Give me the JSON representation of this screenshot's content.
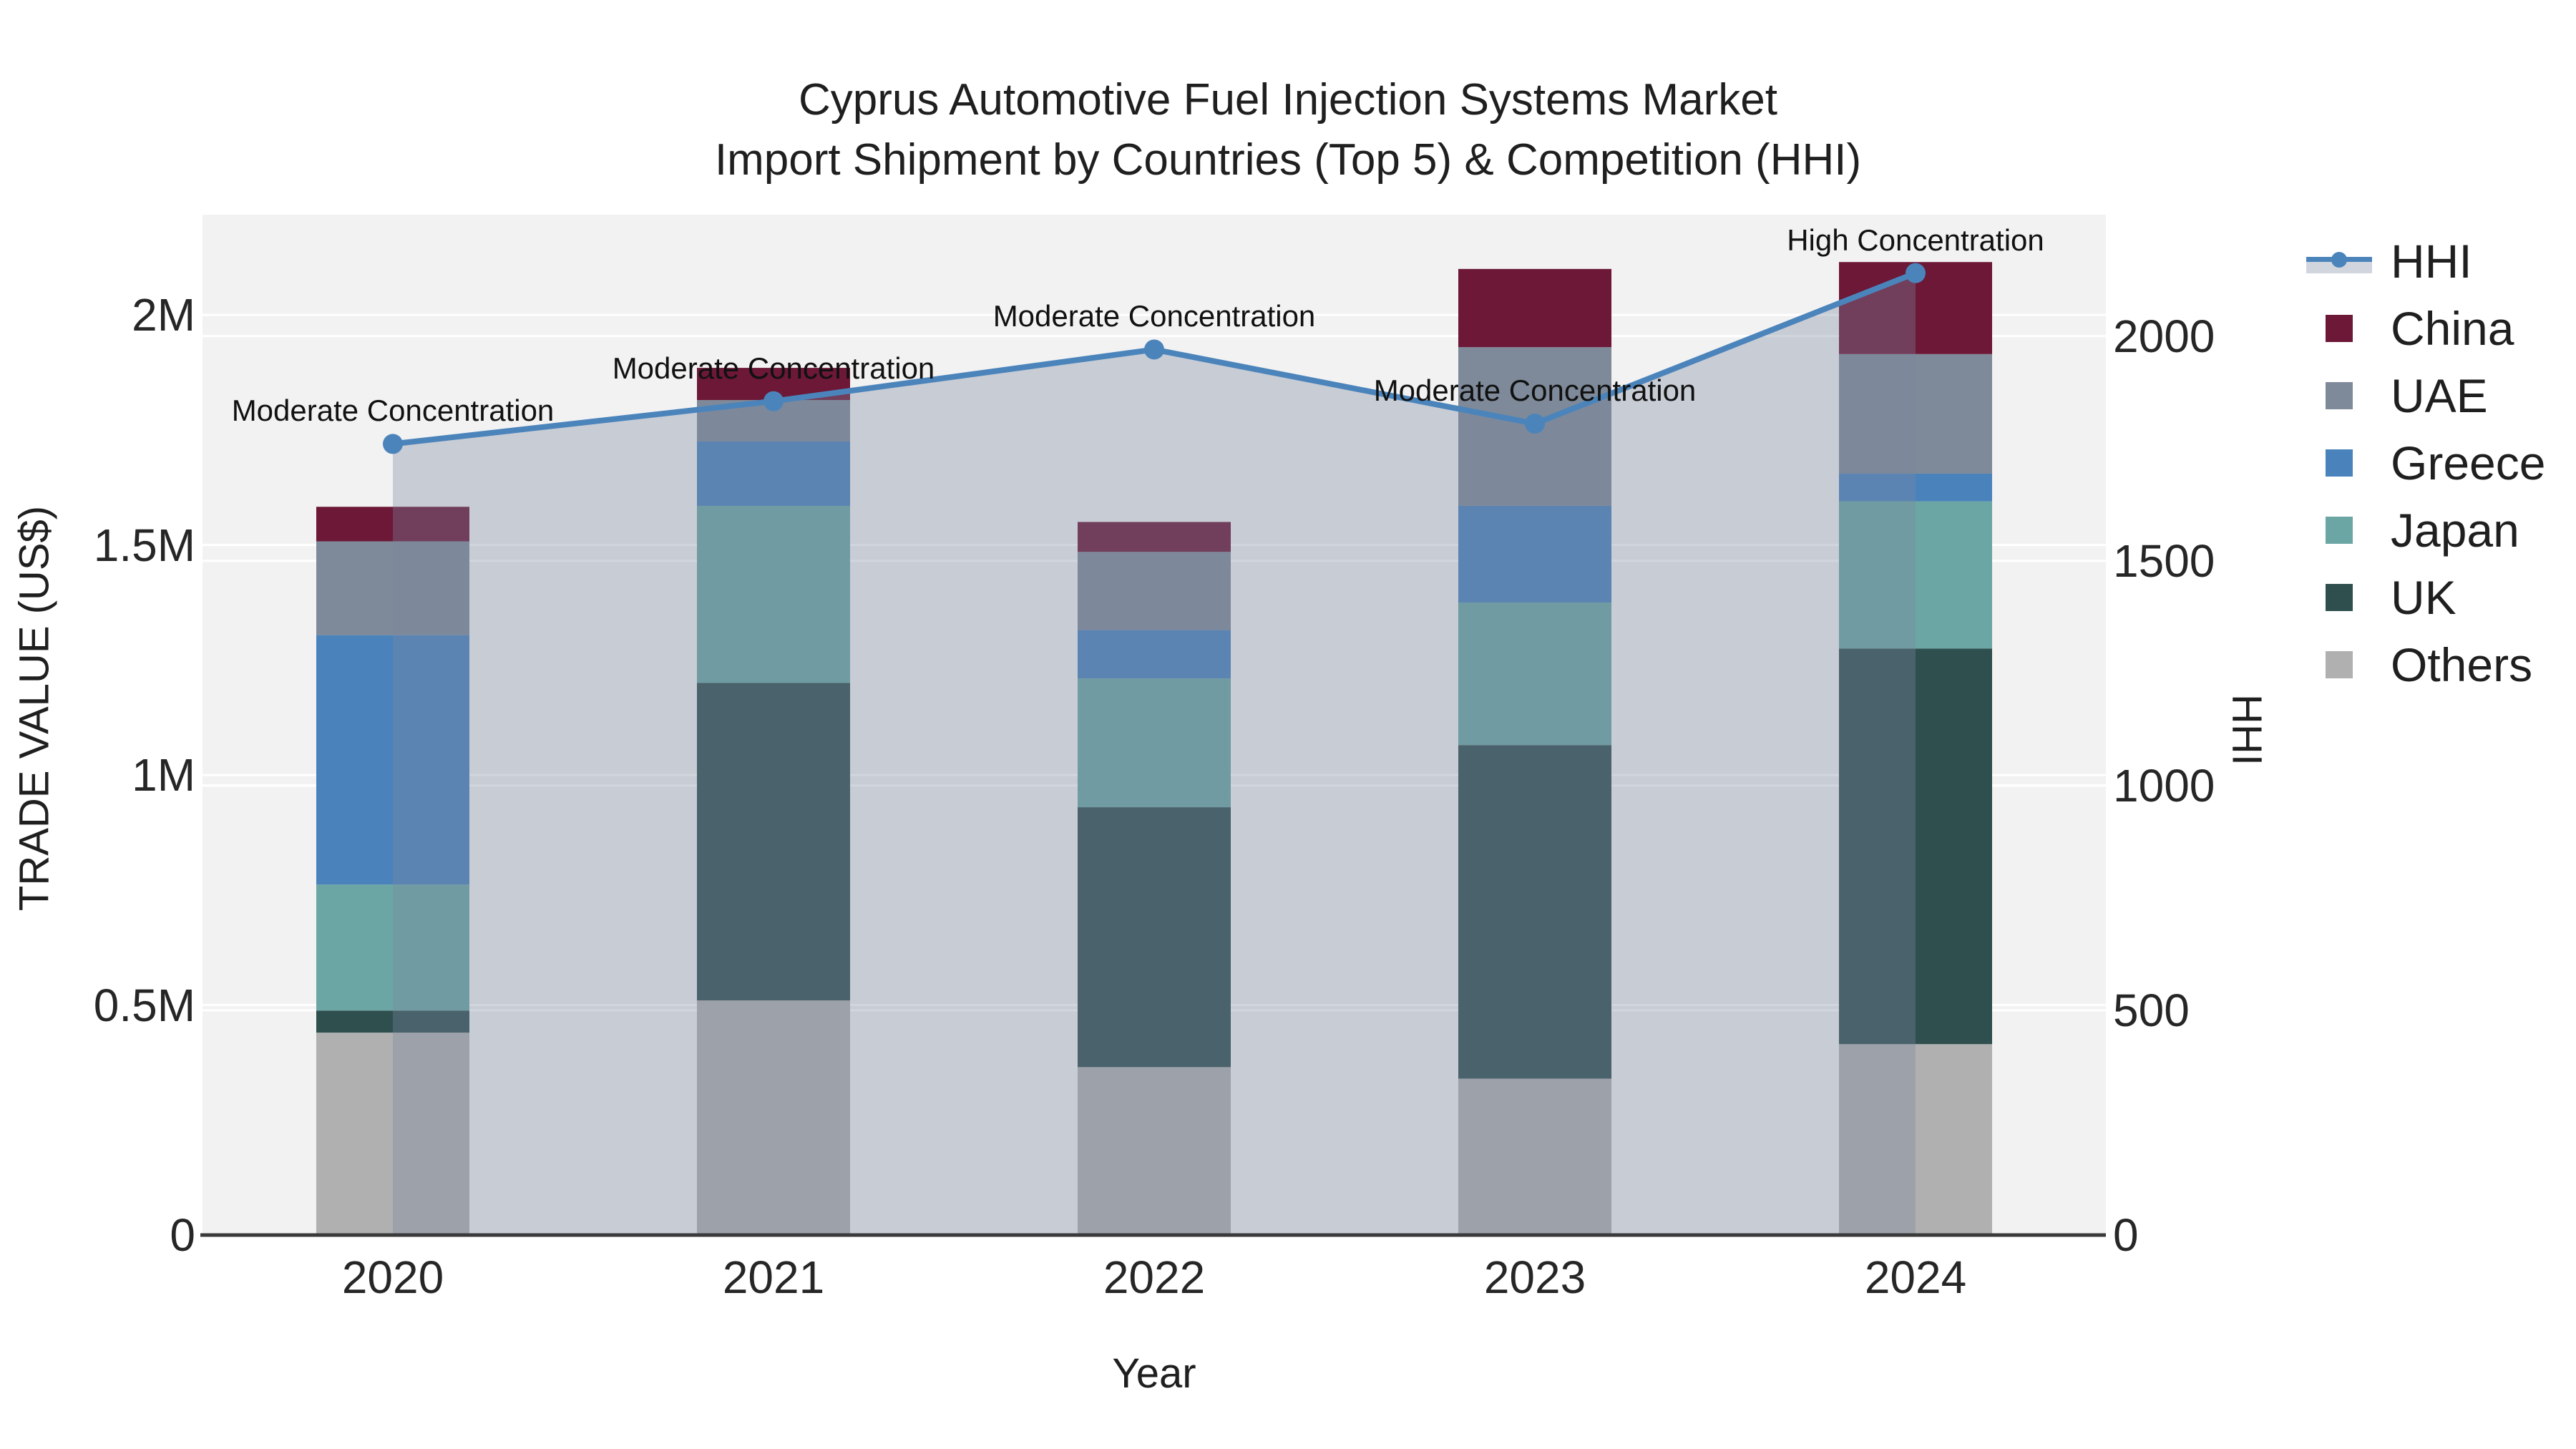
{
  "title": {
    "line1": "Cyprus Automotive Fuel Injection Systems Market",
    "line2": "Import Shipment by Countries (Top 5) & Competition (HHI)"
  },
  "chart_data": {
    "type": "combo-stacked-bar-line",
    "categories": [
      "2020",
      "2021",
      "2022",
      "2023",
      "2024"
    ],
    "series": [
      {
        "name": "Others",
        "color": "#B0B0B0",
        "values": [
          440000,
          510000,
          365000,
          340000,
          415000
        ]
      },
      {
        "name": "UK",
        "color": "#2F4F4F",
        "values": [
          48000,
          690000,
          565000,
          725000,
          860000
        ]
      },
      {
        "name": "Japan",
        "color": "#6CA6A4",
        "values": [
          274000,
          385000,
          280000,
          310000,
          320000
        ]
      },
      {
        "name": "Greece",
        "color": "#4A83BC",
        "values": [
          542000,
          140000,
          105000,
          210000,
          60000
        ]
      },
      {
        "name": "UAE",
        "color": "#7E8A99",
        "values": [
          204000,
          90000,
          170000,
          345000,
          260000
        ]
      },
      {
        "name": "China",
        "color": "#6C1836",
        "values": [
          75000,
          70000,
          65000,
          170000,
          200000
        ]
      }
    ],
    "hhi": {
      "name": "HHI",
      "color": "#4B84BB",
      "area_fill": "rgba(124,135,161,0.35)",
      "values": [
        1760,
        1855,
        1970,
        1805,
        2140
      ]
    },
    "annotations": [
      {
        "category": "2020",
        "text": "Moderate Concentration"
      },
      {
        "category": "2021",
        "text": "Moderate Concentration"
      },
      {
        "category": "2022",
        "text": "Moderate Concentration"
      },
      {
        "category": "2023",
        "text": "Moderate Concentration"
      },
      {
        "category": "2024",
        "text": "High Concentration"
      }
    ],
    "x_axis": {
      "title": "Year"
    },
    "y_left": {
      "title": "TRADE VALUE (US$)",
      "max": 2218000,
      "ticks": [
        {
          "label": "0",
          "value": 0
        },
        {
          "label": "0.5M",
          "value": 500000
        },
        {
          "label": "1M",
          "value": 1000000
        },
        {
          "label": "1.5M",
          "value": 1500000
        },
        {
          "label": "2M",
          "value": 2000000
        }
      ]
    },
    "y_right": {
      "title": "HHI",
      "max": 2270,
      "ticks": [
        {
          "label": "0",
          "value": 0
        },
        {
          "label": "500",
          "value": 500
        },
        {
          "label": "1000",
          "value": 1000
        },
        {
          "label": "1500",
          "value": 1500
        },
        {
          "label": "2000",
          "value": 2000
        }
      ]
    },
    "legend": [
      {
        "label": "HHI",
        "key": "HHI"
      },
      {
        "label": "China",
        "key": "China"
      },
      {
        "label": "UAE",
        "key": "UAE"
      },
      {
        "label": "Greece",
        "key": "Greece"
      },
      {
        "label": "Japan",
        "key": "Japan"
      },
      {
        "label": "UK",
        "key": "UK"
      },
      {
        "label": "Others",
        "key": "Others"
      }
    ],
    "colors": {
      "plot_bg": "#F2F2F2",
      "grid": "#FFFFFF",
      "axis_line": "#3A3A3A",
      "text": "#262626"
    }
  }
}
